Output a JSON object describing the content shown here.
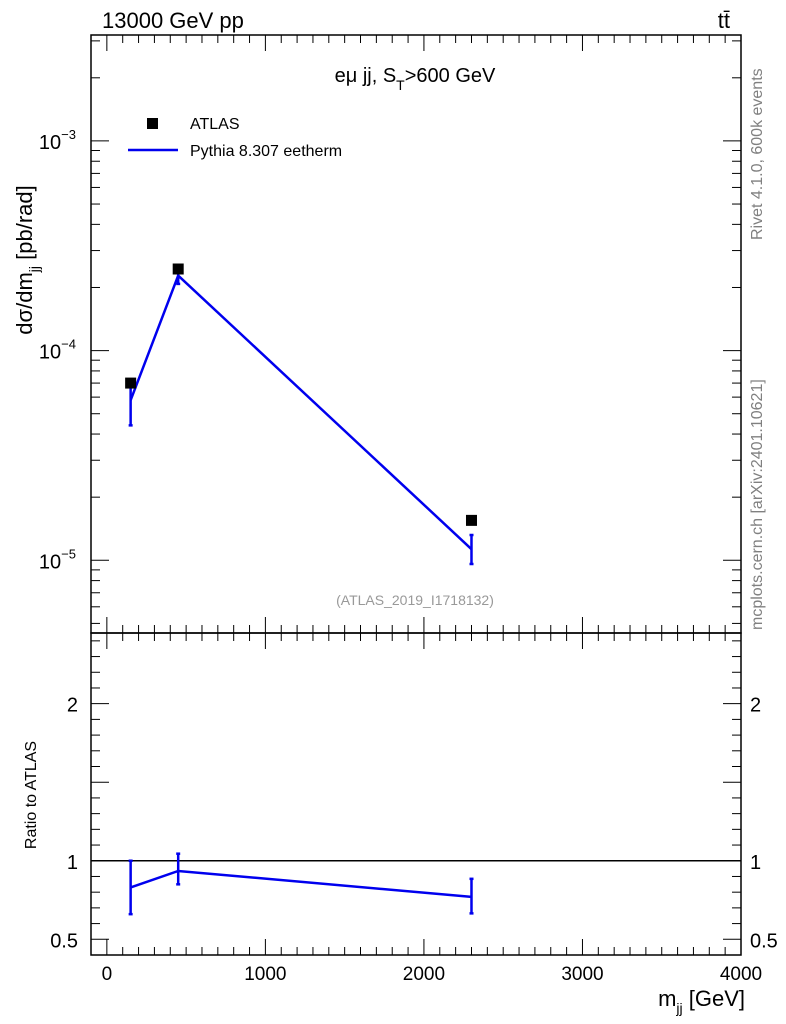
{
  "header": {
    "energy_label": "13000 GeV pp",
    "process_label": "tt̄"
  },
  "side_text": {
    "rivet": "Rivet 4.1.0,  600k events",
    "source": "mcplots.cern.ch [arXiv:2401.10621]"
  },
  "colors": {
    "mc": "#0000ee",
    "data": "#000000",
    "reference_line": "#000000",
    "side_text": "#808080"
  },
  "chart_data": [
    {
      "id": "main",
      "type": "line",
      "title": "eμ jj, S_T>600 GeV",
      "title_parts": {
        "main": "eμ jj, S",
        "sub": "T",
        "tail": ">600 GeV"
      },
      "ylabel": {
        "main": "dσ/dm",
        "sub": "jj",
        "tail": " [pb/rad]"
      },
      "xlim": [
        -100,
        4000
      ],
      "ylim": [
        4.5e-06,
        0.0032
      ],
      "yscale": "log",
      "y_ticks": [
        {
          "value": 1e-05,
          "base": "10",
          "exp": "−5"
        },
        {
          "value": 0.0001,
          "base": "10",
          "exp": "−4"
        },
        {
          "value": 0.001,
          "base": "10",
          "exp": "−3"
        }
      ],
      "watermark": "(ATLAS_2019_I1718132)",
      "legend": [
        {
          "label": "ATLAS",
          "kind": "marker"
        },
        {
          "label": "Pythia 8.307 eetherm",
          "kind": "line"
        }
      ],
      "series": [
        {
          "name": "ATLAS",
          "style": "markers",
          "x": [
            150,
            450,
            2300
          ],
          "y": [
            7e-05,
            0.000245,
            1.55e-05
          ]
        },
        {
          "name": "Pythia 8.307 eetherm",
          "style": "line",
          "x": [
            150,
            450,
            2300
          ],
          "y": [
            5.8e-05,
            0.000228,
            1.13e-05
          ],
          "y_low": [
            4.4e-05,
            0.000208,
            9.6e-06
          ],
          "y_high": [
            7e-05,
            0.000245,
            1.32e-05
          ]
        }
      ]
    },
    {
      "id": "ratio",
      "type": "line",
      "ylabel": "Ratio to ATLAS",
      "xlabel": {
        "main": "m",
        "sub": "jj",
        "tail": " [GeV]"
      },
      "xlim": [
        -100,
        4000
      ],
      "ylim": [
        0.4,
        2.45
      ],
      "x_ticks": [
        0,
        1000,
        2000,
        3000,
        4000
      ],
      "y_ticks": [
        0.5,
        1,
        2
      ],
      "reference": 1,
      "series": [
        {
          "name": "Pythia 8.307 eetherm / ATLAS",
          "x": [
            150,
            450,
            2300
          ],
          "y": [
            0.83,
            0.935,
            0.77
          ],
          "y_low": [
            0.66,
            0.85,
            0.665
          ],
          "y_high": [
            1.0,
            1.045,
            0.885
          ]
        }
      ]
    }
  ]
}
